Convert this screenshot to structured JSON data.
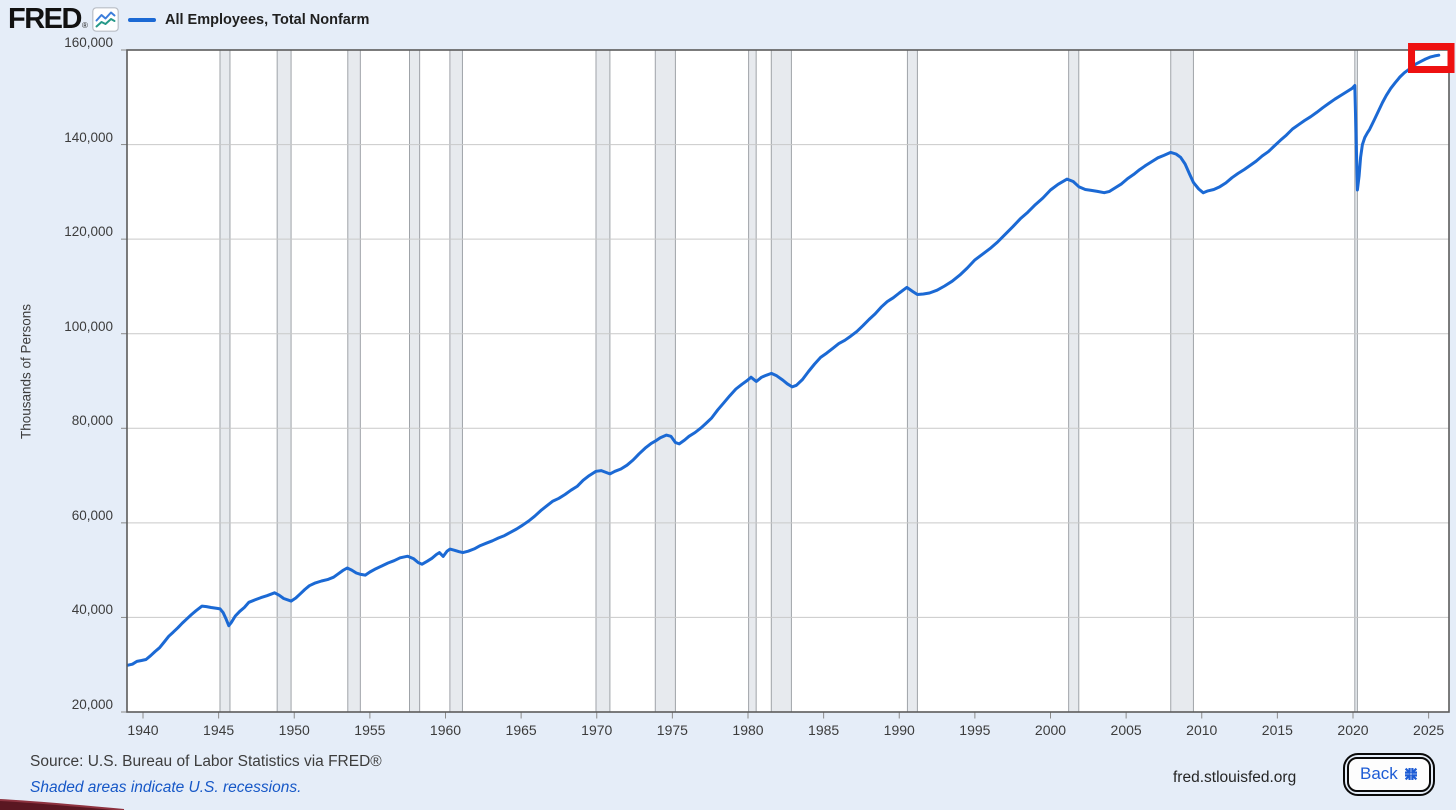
{
  "header": {
    "logo_text": "FRED",
    "logo_registered": "®",
    "legend": {
      "series_label": "All Employees, Total Nonfarm"
    }
  },
  "y_axis": {
    "title": "Thousands of Persons",
    "tick_values": [
      20000,
      40000,
      60000,
      80000,
      100000,
      120000,
      140000,
      160000
    ],
    "tick_labels": [
      "20,000",
      "40,000",
      "60,000",
      "80,000",
      "100,000",
      "120,000",
      "140,000",
      "160,000"
    ]
  },
  "x_axis": {
    "tick_values": [
      1940,
      1945,
      1950,
      1955,
      1960,
      1965,
      1970,
      1975,
      1980,
      1985,
      1990,
      1995,
      2000,
      2005,
      2010,
      2015,
      2020,
      2025
    ],
    "tick_labels": [
      "1940",
      "1945",
      "1950",
      "1955",
      "1960",
      "1965",
      "1970",
      "1975",
      "1980",
      "1985",
      "1990",
      "1995",
      "2000",
      "2005",
      "2010",
      "2015",
      "2020",
      "2025"
    ]
  },
  "footer": {
    "source_text": "Source: U.S. Bureau of Labor Statistics via FRED®",
    "recession_note": "Shaded areas indicate U.S. recessions.",
    "site_url": "fred.stlouisfed.org",
    "back_button_label": "Back"
  },
  "colors": {
    "background": "#e5edf8",
    "plot_background": "#ffffff",
    "line": "#1b69d4",
    "grid": "#c9c9c9",
    "plot_border": "#5c5c5c",
    "recession_fill": "#e7eaee",
    "recession_edge": "#9fa3a8",
    "tick": "#8a8a8a",
    "highlight_box": "#ee1111",
    "link_blue": "#1758c7",
    "back_blue": "#1d5cd5",
    "axis_text": "#3c3c3c",
    "fred_icon_blue": "#3d7edb",
    "fred_icon_teal": "#279989",
    "corner_sliver": "#5a1722",
    "corner_sliver_edge": "#8e3340"
  },
  "chart_data": {
    "type": "line",
    "title": "All Employees, Total Nonfarm",
    "xlabel": "",
    "ylabel": "Thousands of Persons",
    "x_range": [
      1938.94,
      2026.35
    ],
    "y_range": [
      20000,
      160000
    ],
    "grid": true,
    "legend_position": "top-left",
    "series": [
      {
        "name": "All Employees, Total Nonfarm",
        "units": "Thousands of Persons",
        "points": [
          [
            1939.0,
            29900
          ],
          [
            1939.3,
            30100
          ],
          [
            1939.6,
            30700
          ],
          [
            1939.9,
            30900
          ],
          [
            1940.2,
            31100
          ],
          [
            1940.5,
            31900
          ],
          [
            1940.8,
            32800
          ],
          [
            1941.1,
            33600
          ],
          [
            1941.4,
            34800
          ],
          [
            1941.7,
            36000
          ],
          [
            1942.0,
            36900
          ],
          [
            1942.3,
            37800
          ],
          [
            1942.6,
            38800
          ],
          [
            1942.9,
            39700
          ],
          [
            1943.2,
            40600
          ],
          [
            1943.5,
            41400
          ],
          [
            1943.9,
            42400
          ],
          [
            1944.2,
            42300
          ],
          [
            1944.5,
            42100
          ],
          [
            1944.9,
            41900
          ],
          [
            1945.1,
            41800
          ],
          [
            1945.3,
            41000
          ],
          [
            1945.5,
            39600
          ],
          [
            1945.67,
            38250
          ],
          [
            1945.85,
            39000
          ],
          [
            1946.1,
            40300
          ],
          [
            1946.4,
            41300
          ],
          [
            1946.7,
            42100
          ],
          [
            1947.0,
            43200
          ],
          [
            1947.4,
            43700
          ],
          [
            1947.8,
            44200
          ],
          [
            1948.2,
            44600
          ],
          [
            1948.7,
            45200
          ],
          [
            1949.0,
            44700
          ],
          [
            1949.3,
            44000
          ],
          [
            1949.79,
            43450
          ],
          [
            1950.1,
            44100
          ],
          [
            1950.4,
            45000
          ],
          [
            1950.7,
            45900
          ],
          [
            1951.0,
            46700
          ],
          [
            1951.4,
            47300
          ],
          [
            1951.8,
            47700
          ],
          [
            1952.2,
            48000
          ],
          [
            1952.6,
            48500
          ],
          [
            1952.9,
            49200
          ],
          [
            1953.2,
            49900
          ],
          [
            1953.5,
            50450
          ],
          [
            1953.8,
            50000
          ],
          [
            1954.1,
            49400
          ],
          [
            1954.4,
            49100
          ],
          [
            1954.7,
            48950
          ],
          [
            1955.0,
            49600
          ],
          [
            1955.4,
            50300
          ],
          [
            1955.8,
            50900
          ],
          [
            1956.2,
            51500
          ],
          [
            1956.6,
            52000
          ],
          [
            1957.0,
            52600
          ],
          [
            1957.5,
            52950
          ],
          [
            1957.9,
            52400
          ],
          [
            1958.2,
            51600
          ],
          [
            1958.45,
            51250
          ],
          [
            1958.8,
            51900
          ],
          [
            1959.1,
            52500
          ],
          [
            1959.4,
            53300
          ],
          [
            1959.6,
            53700
          ],
          [
            1959.85,
            52900
          ],
          [
            1960.1,
            54000
          ],
          [
            1960.3,
            54450
          ],
          [
            1960.6,
            54200
          ],
          [
            1960.9,
            53900
          ],
          [
            1961.15,
            53700
          ],
          [
            1961.5,
            54000
          ],
          [
            1961.9,
            54500
          ],
          [
            1962.3,
            55200
          ],
          [
            1962.7,
            55700
          ],
          [
            1963.1,
            56200
          ],
          [
            1963.5,
            56800
          ],
          [
            1963.9,
            57300
          ],
          [
            1964.3,
            58000
          ],
          [
            1964.7,
            58700
          ],
          [
            1965.1,
            59500
          ],
          [
            1965.5,
            60400
          ],
          [
            1965.9,
            61400
          ],
          [
            1966.3,
            62600
          ],
          [
            1966.7,
            63600
          ],
          [
            1967.1,
            64600
          ],
          [
            1967.5,
            65200
          ],
          [
            1967.9,
            66000
          ],
          [
            1968.3,
            66900
          ],
          [
            1968.7,
            67700
          ],
          [
            1969.1,
            69000
          ],
          [
            1969.5,
            70000
          ],
          [
            1969.95,
            70900
          ],
          [
            1970.3,
            71050
          ],
          [
            1970.87,
            70350
          ],
          [
            1971.2,
            70900
          ],
          [
            1971.6,
            71400
          ],
          [
            1972.0,
            72200
          ],
          [
            1972.4,
            73300
          ],
          [
            1972.8,
            74600
          ],
          [
            1973.2,
            75800
          ],
          [
            1973.6,
            76800
          ],
          [
            1973.87,
            77300
          ],
          [
            1974.2,
            78000
          ],
          [
            1974.6,
            78550
          ],
          [
            1974.9,
            78300
          ],
          [
            1975.2,
            77000
          ],
          [
            1975.45,
            76700
          ],
          [
            1975.8,
            77500
          ],
          [
            1976.1,
            78300
          ],
          [
            1976.5,
            79100
          ],
          [
            1976.9,
            80100
          ],
          [
            1977.2,
            81000
          ],
          [
            1977.6,
            82200
          ],
          [
            1978.0,
            83900
          ],
          [
            1978.4,
            85400
          ],
          [
            1978.8,
            86900
          ],
          [
            1979.2,
            88300
          ],
          [
            1979.6,
            89300
          ],
          [
            1979.95,
            90100
          ],
          [
            1980.2,
            90800
          ],
          [
            1980.55,
            89900
          ],
          [
            1980.9,
            90800
          ],
          [
            1981.2,
            91200
          ],
          [
            1981.55,
            91600
          ],
          [
            1981.9,
            91100
          ],
          [
            1982.3,
            90200
          ],
          [
            1982.6,
            89400
          ],
          [
            1982.92,
            88750
          ],
          [
            1983.2,
            89100
          ],
          [
            1983.6,
            90300
          ],
          [
            1984.0,
            92000
          ],
          [
            1984.4,
            93600
          ],
          [
            1984.8,
            95000
          ],
          [
            1985.2,
            95900
          ],
          [
            1985.6,
            96900
          ],
          [
            1986.0,
            97900
          ],
          [
            1986.4,
            98600
          ],
          [
            1986.8,
            99500
          ],
          [
            1987.2,
            100500
          ],
          [
            1987.6,
            101700
          ],
          [
            1988.0,
            103000
          ],
          [
            1988.4,
            104200
          ],
          [
            1988.8,
            105600
          ],
          [
            1989.2,
            106800
          ],
          [
            1989.6,
            107600
          ],
          [
            1990.0,
            108600
          ],
          [
            1990.5,
            109800
          ],
          [
            1990.9,
            108900
          ],
          [
            1991.2,
            108300
          ],
          [
            1991.6,
            108400
          ],
          [
            1992.0,
            108600
          ],
          [
            1992.5,
            109200
          ],
          [
            1993.0,
            110100
          ],
          [
            1993.5,
            111100
          ],
          [
            1994.0,
            112400
          ],
          [
            1994.5,
            113900
          ],
          [
            1995.0,
            115600
          ],
          [
            1995.5,
            116800
          ],
          [
            1996.0,
            118000
          ],
          [
            1996.5,
            119400
          ],
          [
            1997.0,
            121000
          ],
          [
            1997.5,
            122600
          ],
          [
            1998.0,
            124300
          ],
          [
            1998.5,
            125700
          ],
          [
            1999.0,
            127300
          ],
          [
            1999.5,
            128700
          ],
          [
            2000.0,
            130400
          ],
          [
            2000.5,
            131600
          ],
          [
            2001.1,
            132700
          ],
          [
            2001.5,
            132200
          ],
          [
            2001.87,
            131100
          ],
          [
            2002.3,
            130500
          ],
          [
            2002.7,
            130300
          ],
          [
            2003.1,
            130100
          ],
          [
            2003.55,
            129820
          ],
          [
            2003.9,
            130100
          ],
          [
            2004.3,
            130900
          ],
          [
            2004.7,
            131700
          ],
          [
            2005.1,
            132800
          ],
          [
            2005.5,
            133700
          ],
          [
            2005.9,
            134700
          ],
          [
            2006.3,
            135600
          ],
          [
            2006.7,
            136400
          ],
          [
            2007.1,
            137200
          ],
          [
            2007.5,
            137700
          ],
          [
            2007.95,
            138350
          ],
          [
            2008.3,
            138000
          ],
          [
            2008.6,
            137300
          ],
          [
            2008.9,
            135900
          ],
          [
            2009.2,
            133700
          ],
          [
            2009.45,
            132000
          ],
          [
            2009.8,
            130600
          ],
          [
            2010.1,
            129800
          ],
          [
            2010.4,
            130200
          ],
          [
            2010.8,
            130500
          ],
          [
            2011.2,
            131100
          ],
          [
            2011.6,
            131900
          ],
          [
            2012.0,
            133000
          ],
          [
            2012.4,
            133900
          ],
          [
            2012.8,
            134700
          ],
          [
            2013.2,
            135600
          ],
          [
            2013.6,
            136500
          ],
          [
            2014.0,
            137600
          ],
          [
            2014.4,
            138500
          ],
          [
            2014.8,
            139700
          ],
          [
            2015.2,
            140900
          ],
          [
            2015.6,
            142000
          ],
          [
            2016.0,
            143300
          ],
          [
            2016.4,
            144200
          ],
          [
            2016.8,
            145100
          ],
          [
            2017.2,
            145900
          ],
          [
            2017.6,
            146800
          ],
          [
            2018.0,
            147800
          ],
          [
            2018.4,
            148700
          ],
          [
            2018.8,
            149600
          ],
          [
            2019.2,
            150400
          ],
          [
            2019.6,
            151200
          ],
          [
            2019.95,
            151900
          ],
          [
            2020.12,
            152500
          ],
          [
            2020.29,
            130400
          ],
          [
            2020.4,
            133400
          ],
          [
            2020.5,
            137300
          ],
          [
            2020.62,
            140000
          ],
          [
            2020.78,
            141500
          ],
          [
            2020.95,
            142500
          ],
          [
            2021.1,
            143200
          ],
          [
            2021.4,
            145200
          ],
          [
            2021.7,
            147200
          ],
          [
            2021.95,
            148900
          ],
          [
            2022.2,
            150400
          ],
          [
            2022.5,
            151900
          ],
          [
            2022.8,
            153100
          ],
          [
            2023.1,
            154300
          ],
          [
            2023.4,
            155200
          ],
          [
            2023.7,
            155900
          ],
          [
            2023.95,
            156600
          ],
          [
            2024.2,
            157100
          ],
          [
            2024.5,
            157600
          ],
          [
            2024.8,
            158100
          ],
          [
            2025.1,
            158500
          ],
          [
            2025.4,
            158750
          ],
          [
            2025.67,
            158900
          ]
        ]
      }
    ],
    "recessions": [
      [
        1945.09,
        1945.75
      ],
      [
        1948.87,
        1949.79
      ],
      [
        1953.54,
        1954.37
      ],
      [
        1957.62,
        1958.29
      ],
      [
        1960.29,
        1961.12
      ],
      [
        1969.95,
        1970.87
      ],
      [
        1973.87,
        1975.2
      ],
      [
        1980.04,
        1980.54
      ],
      [
        1981.54,
        1982.87
      ],
      [
        1990.54,
        1991.2
      ],
      [
        2001.2,
        2001.87
      ],
      [
        2007.95,
        2009.45
      ],
      [
        2020.12,
        2020.29
      ]
    ],
    "highlight_box": {
      "year_start": 2023.87,
      "year_end": 2026.48,
      "value_top": 160740,
      "value_bottom": 155875,
      "stroke_width": 7
    }
  }
}
